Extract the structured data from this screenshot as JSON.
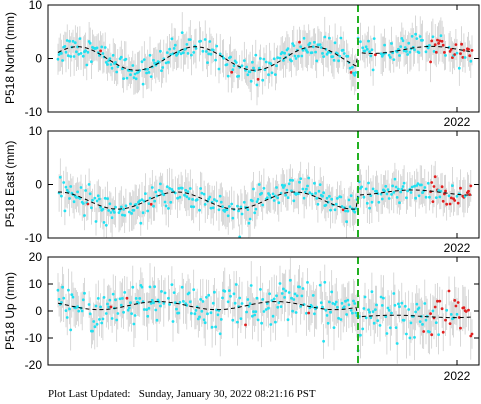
{
  "footer": {
    "label": "Plot Last Updated:",
    "value": "Sunday, January 30, 2022 08:21:16 PST"
  },
  "colors": {
    "point": "#22e0f0",
    "recent_point": "#e02020",
    "errorbar": "#c8c8c8",
    "model": "#000000",
    "marker_line": "#22b022"
  },
  "chart_data": [
    {
      "type": "scatter",
      "ylabel": "P518 North (mm)",
      "ylim": [
        -10,
        10
      ],
      "yticks": [
        -10,
        0,
        10
      ],
      "year_label": "2022",
      "model": "seasonal",
      "amplitude": 2.2,
      "offset": 0,
      "post_offset": 1.6,
      "noise": 1.2,
      "error": 3
    },
    {
      "type": "scatter",
      "ylabel": "P518 East (mm)",
      "ylim": [
        -10,
        10
      ],
      "yticks": [
        -10,
        0,
        10
      ],
      "year_label": "2022",
      "model": "seasonal",
      "amplitude": 1.6,
      "offset": -3,
      "post_offset": -1.5,
      "noise": 1.3,
      "error": 3
    },
    {
      "type": "scatter",
      "ylabel": "P518 Up (mm)",
      "ylim": [
        -20,
        20
      ],
      "yticks": [
        -20,
        -10,
        0,
        10,
        20
      ],
      "year_label": "2022",
      "model": "seasonal",
      "amplitude": 1.5,
      "offset": 2,
      "post_offset": -2,
      "noise": 4,
      "error": 7
    }
  ]
}
